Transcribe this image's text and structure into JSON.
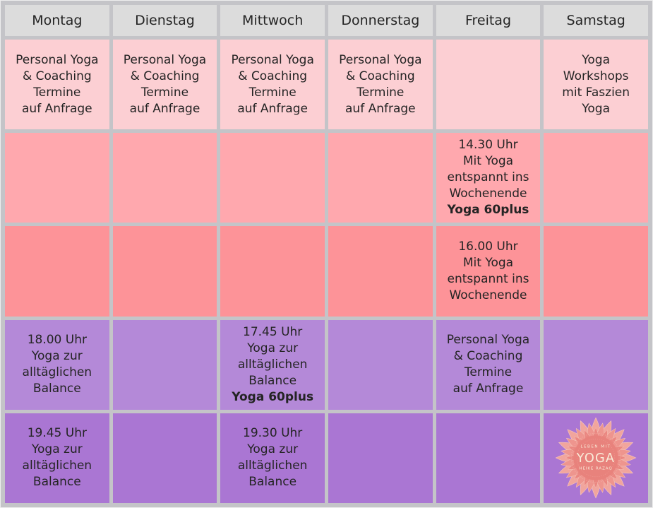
{
  "table": {
    "days": [
      "Montag",
      "Dienstag",
      "Mittwoch",
      "Donnerstag",
      "Freitag",
      "Samstag"
    ],
    "rows": [
      {
        "bg": "#fccfd3",
        "cells": [
          {
            "lines": [
              "Personal Yoga",
              "& Coaching",
              "Termine",
              "auf Anfrage"
            ]
          },
          {
            "lines": [
              "Personal Yoga",
              "& Coaching",
              "Termine",
              "auf Anfrage"
            ]
          },
          {
            "lines": [
              "Personal Yoga",
              "& Coaching",
              "Termine",
              "auf Anfrage"
            ]
          },
          {
            "lines": [
              "Personal Yoga",
              "& Coaching",
              "Termine",
              "auf Anfrage"
            ]
          },
          {
            "lines": []
          },
          {
            "lines": [
              "Yoga",
              "Workshops",
              "mit Faszien",
              "Yoga"
            ]
          }
        ]
      },
      {
        "bg": "#ffa8ae",
        "cells": [
          {
            "lines": []
          },
          {
            "lines": []
          },
          {
            "lines": []
          },
          {
            "lines": []
          },
          {
            "lines": [
              "14.30 Uhr",
              "Mit Yoga",
              "entspannt ins",
              "Wochenende",
              {
                "text": "Yoga 60plus",
                "bold": true
              }
            ]
          },
          {
            "lines": []
          }
        ]
      },
      {
        "bg": "#fd9398",
        "cells": [
          {
            "lines": []
          },
          {
            "lines": []
          },
          {
            "lines": []
          },
          {
            "lines": []
          },
          {
            "lines": [
              "16.00 Uhr",
              "Mit Yoga",
              "entspannt ins",
              "Wochenende"
            ]
          },
          {
            "lines": []
          }
        ]
      },
      {
        "bg": "#b489d8",
        "cells": [
          {
            "lines": [
              "18.00 Uhr",
              "Yoga zur",
              "alltäglichen",
              "Balance"
            ]
          },
          {
            "lines": []
          },
          {
            "lines": [
              "17.45 Uhr",
              "Yoga zur",
              "alltäglichen",
              "Balance",
              {
                "text": "Yoga 60plus",
                "bold": true
              }
            ]
          },
          {
            "lines": []
          },
          {
            "lines": [
              "Personal Yoga",
              "& Coaching",
              "Termine",
              "auf Anfrage"
            ]
          },
          {
            "lines": []
          }
        ]
      },
      {
        "bg": "#aa76d3",
        "cells": [
          {
            "lines": [
              "19.45 Uhr",
              "Yoga zur",
              "alltäglichen",
              "Balance"
            ]
          },
          {
            "lines": []
          },
          {
            "lines": [
              "19.30 Uhr",
              "Yoga zur",
              "alltäglichen",
              "Balance"
            ]
          },
          {
            "lines": []
          },
          {
            "lines": []
          },
          {
            "lines": [],
            "logo": true
          }
        ]
      }
    ]
  },
  "logo": {
    "top_label": "LEBEN MIT",
    "name": "YOGA",
    "subtitle": "HEIKE RAZAQ"
  },
  "colors": {
    "grid_line": "#c4c4c8",
    "header_bg": "#dcdcdc",
    "text": "#242424",
    "row1_pink": "#fccfd3",
    "row2_pink": "#ffa8ae",
    "row3_salmon": "#fd9398",
    "row4_purple": "#b489d8",
    "row5_purple": "#aa76d3",
    "logo_petal_outer": "#f1a59d",
    "logo_petal_mid": "#ee958e",
    "logo_petal_inner": "#ea8781",
    "logo_center": "#e8827c",
    "logo_text": "#f9ecd9"
  }
}
